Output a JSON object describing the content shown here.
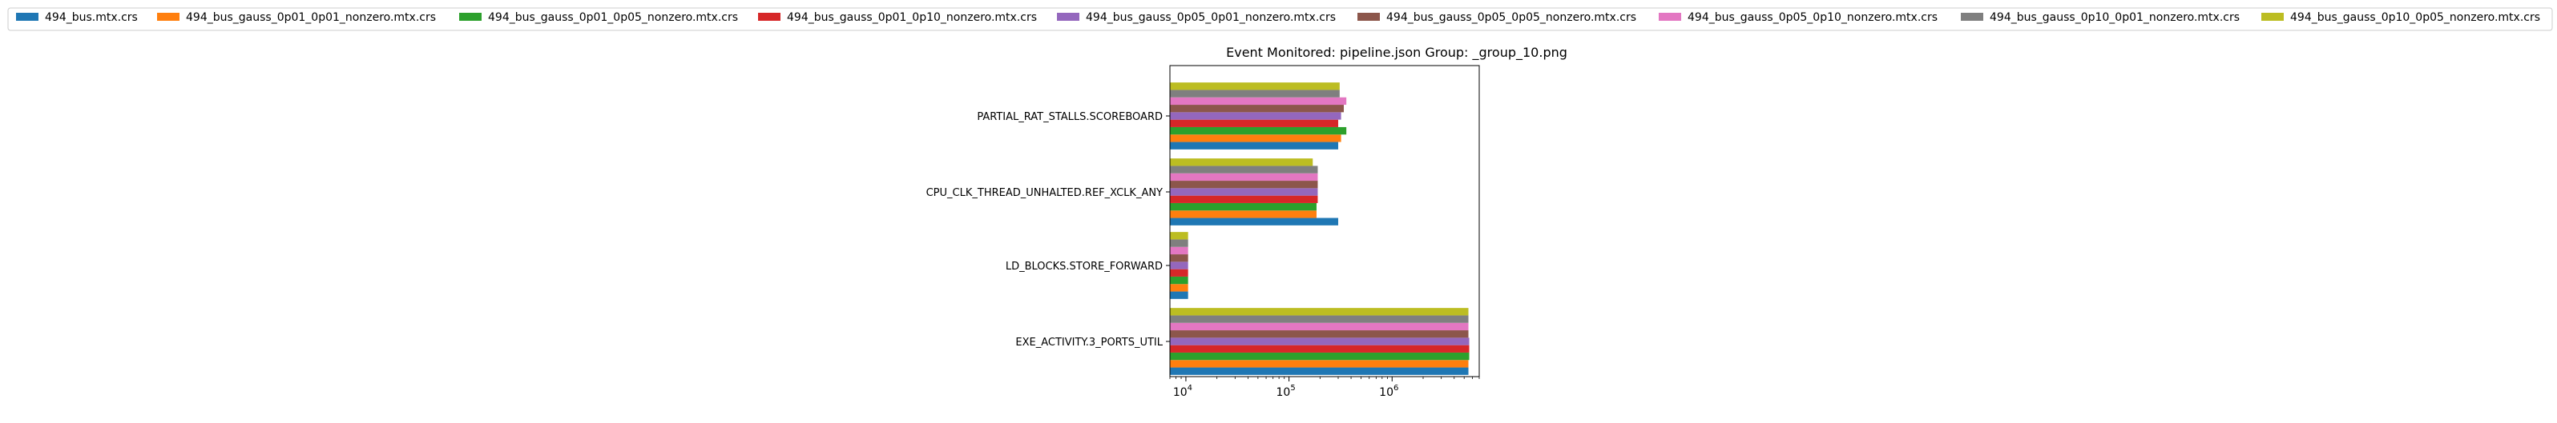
{
  "chart_data": {
    "type": "bar",
    "orientation": "horizontal",
    "title": "Event Monitored: pipeline.json Group: _group_10.png",
    "xlabel": "",
    "ylabel": "",
    "xscale": "log",
    "xlim": [
      7000,
      7000000
    ],
    "x_ticks": [
      {
        "value": 10000,
        "base": "10",
        "exp": "4"
      },
      {
        "value": 100000,
        "base": "10",
        "exp": "5"
      },
      {
        "value": 1000000,
        "base": "10",
        "exp": "6"
      }
    ],
    "categories": [
      "EXE_ACTIVITY.3_PORTS_UTIL",
      "LD_BLOCKS.STORE_FORWARD",
      "CPU_CLK_THREAD_UNHALTED.REF_XCLK_ANY",
      "PARTIAL_RAT_STALLS.SCOREBOARD"
    ],
    "legend_position": "top, above plot",
    "series": [
      {
        "name": "494_bus.mtx.crs",
        "color": "#1f77b4",
        "values": [
          5500000,
          10500,
          300000,
          300000
        ]
      },
      {
        "name": "494_bus_gauss_0p01_0p01_nonzero.mtx.crs",
        "color": "#ff7f0e",
        "values": [
          5500000,
          10500,
          185000,
          320000
        ]
      },
      {
        "name": "494_bus_gauss_0p01_0p05_nonzero.mtx.crs",
        "color": "#2ca02c",
        "values": [
          5600000,
          10500,
          185000,
          360000
        ]
      },
      {
        "name": "494_bus_gauss_0p01_0p10_nonzero.mtx.crs",
        "color": "#d62728",
        "values": [
          5600000,
          10500,
          190000,
          300000
        ]
      },
      {
        "name": "494_bus_gauss_0p05_0p01_nonzero.mtx.crs",
        "color": "#9467bd",
        "values": [
          5600000,
          10500,
          190000,
          320000
        ]
      },
      {
        "name": "494_bus_gauss_0p05_0p05_nonzero.mtx.crs",
        "color": "#8c564b",
        "values": [
          5500000,
          10500,
          190000,
          340000
        ]
      },
      {
        "name": "494_bus_gauss_0p05_0p10_nonzero.mtx.crs",
        "color": "#e377c2",
        "values": [
          5500000,
          10500,
          190000,
          360000
        ]
      },
      {
        "name": "494_bus_gauss_0p10_0p01_nonzero.mtx.crs",
        "color": "#7f7f7f",
        "values": [
          5500000,
          10500,
          190000,
          310000
        ]
      },
      {
        "name": "494_bus_gauss_0p10_0p05_nonzero.mtx.crs",
        "color": "#bcbd22",
        "values": [
          5500000,
          10500,
          170000,
          310000
        ]
      }
    ]
  }
}
